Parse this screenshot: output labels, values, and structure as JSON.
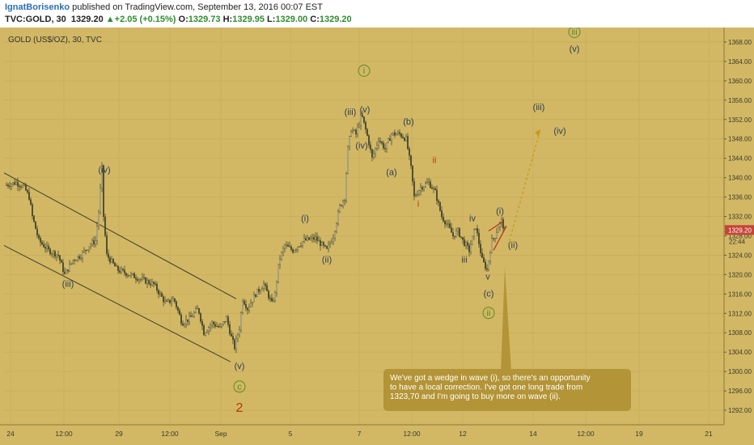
{
  "header": {
    "author": "IgnatBorisenko",
    "published": "published on TradingView.com, September 13, 2016 00:07 EST",
    "symbol": "TVC:GOLD, 30",
    "last": "1329.20",
    "change": "+2.05 (+0.15%)",
    "o_label": "O:",
    "o": "1329.73",
    "h_label": "H:",
    "h": "1329.95",
    "l_label": "L:",
    "l": "1329.00",
    "c_label": "C:",
    "c": "1329.20"
  },
  "colors": {
    "background": "#d2b865",
    "candle": "#4a4a2c",
    "wave_text": "#2c3e55",
    "wave_green": "#5a8a2a",
    "wave_red": "#b03a10",
    "price_tag": "#c5443a",
    "arrow": "#c89a18",
    "callout": "#b39436"
  },
  "chart_data": {
    "type": "candlestick",
    "title": "GOLD (US$/OZ), 30, TVC",
    "ylim": [
      1289,
      1371
    ],
    "y_ticks": [
      "1292.00",
      "1296.00",
      "1300.00",
      "1304.00",
      "1308.00",
      "1312.00",
      "1316.00",
      "1320.00",
      "1324.00",
      "1328.00",
      "1332.00",
      "1336.00",
      "1340.00",
      "1344.00",
      "1348.00",
      "1352.00",
      "1356.00",
      "1360.00",
      "1364.00",
      "1368.00"
    ],
    "x_ticks": [
      "24",
      "12:00",
      "29",
      "12:00",
      "Sep",
      "5",
      "7",
      "12:00",
      "12",
      "14",
      "12:00",
      "19",
      "21"
    ],
    "last_price": "1329.20",
    "countdown": "22:44",
    "path_x": [
      8,
      20,
      30,
      36,
      40,
      48,
      60,
      72,
      80,
      90,
      100,
      110,
      118,
      122,
      126,
      128,
      132,
      145,
      160,
      175,
      190,
      205,
      215,
      225,
      235,
      245,
      252,
      262,
      272,
      280,
      286,
      290,
      296,
      300,
      306,
      316,
      326,
      336,
      340,
      345,
      352,
      362,
      375,
      390,
      404,
      412,
      420,
      426,
      430,
      434,
      440,
      447,
      455,
      460,
      468,
      476,
      484,
      494,
      502,
      508,
      512,
      516,
      520,
      530,
      538,
      546,
      554,
      560,
      566,
      572,
      580,
      588,
      596,
      602,
      608,
      612,
      616,
      620,
      624
    ],
    "path_y": [
      1338.5,
      1339,
      1338,
      1336,
      1332,
      1327,
      1325,
      1324,
      1320,
      1323,
      1324,
      1326,
      1327,
      1333,
      1342,
      1332,
      1324,
      1321,
      1320,
      1319,
      1318,
      1314,
      1315,
      1310,
      1311,
      1313,
      1308,
      1310,
      1309,
      1311,
      1307,
      1305,
      1309,
      1315,
      1313,
      1316,
      1318,
      1314,
      1316,
      1323,
      1326,
      1325,
      1327,
      1327.5,
      1325,
      1328,
      1334,
      1336,
      1346,
      1350,
      1349,
      1353,
      1348,
      1344,
      1348,
      1346,
      1349,
      1349,
      1348,
      1342,
      1336,
      1337,
      1338,
      1339,
      1337,
      1332,
      1330,
      1328,
      1329,
      1327,
      1325,
      1330,
      1323,
      1321,
      1327,
      1328,
      1330,
      1331,
      1329
    ],
    "channel_lines": [
      {
        "from": [
          5,
          1341
        ],
        "to": [
          292,
          1315
        ]
      },
      {
        "from": [
          5,
          1326
        ],
        "to": [
          285,
          1302
        ]
      }
    ],
    "wedge_lines": [
      {
        "from": [
          604,
          1329
        ],
        "to": [
          622,
          1331
        ]
      },
      {
        "from": [
          610,
          1325
        ],
        "to": [
          626,
          1330
        ]
      }
    ],
    "projection": {
      "from": [
        628,
        1326
      ],
      "to": [
        668,
        1350
      ]
    },
    "waves": [
      {
        "text": "(iv)",
        "x": 129,
        "y": 1341,
        "color": "dark"
      },
      {
        "text": "(iii)",
        "x": 84,
        "y": 1317.5,
        "color": "dark"
      },
      {
        "text": "(v)",
        "x": 296,
        "y": 1300.5,
        "color": "dark"
      },
      {
        "text": "c",
        "x": 296,
        "y": 1296.3,
        "color": "green",
        "circled": true
      },
      {
        "text": "2",
        "x": 296,
        "y": 1291.7,
        "color": "red"
      },
      {
        "text": "(i)",
        "x": 377,
        "y": 1331,
        "color": "dark"
      },
      {
        "text": "(ii)",
        "x": 404,
        "y": 1322.5,
        "color": "dark"
      },
      {
        "text": "(iii)",
        "x": 433,
        "y": 1353,
        "color": "dark"
      },
      {
        "text": "(v)",
        "x": 451,
        "y": 1353.5,
        "color": "dark"
      },
      {
        "text": "(iv)",
        "x": 447,
        "y": 1346,
        "color": "dark"
      },
      {
        "text": "i",
        "x": 450,
        "y": 1361.5,
        "color": "green",
        "circled": true
      },
      {
        "text": "(b)",
        "x": 505,
        "y": 1351,
        "color": "dark"
      },
      {
        "text": "(a)",
        "x": 484,
        "y": 1340.5,
        "color": "dark"
      },
      {
        "text": "ii",
        "x": 537,
        "y": 1343,
        "color": "red"
      },
      {
        "text": "i",
        "x": 517,
        "y": 1334,
        "color": "red"
      },
      {
        "text": "iv",
        "x": 584,
        "y": 1331,
        "color": "dark"
      },
      {
        "text": "iii",
        "x": 574,
        "y": 1322.5,
        "color": "dark"
      },
      {
        "text": "(i)",
        "x": 618,
        "y": 1332.5,
        "color": "dark"
      },
      {
        "text": "(ii)",
        "x": 634,
        "y": 1325.5,
        "color": "dark"
      },
      {
        "text": "v",
        "x": 603,
        "y": 1319,
        "color": "dark"
      },
      {
        "text": "(c)",
        "x": 604,
        "y": 1315.5,
        "color": "dark"
      },
      {
        "text": "ii",
        "x": 604,
        "y": 1311.5,
        "color": "green",
        "circled": true
      },
      {
        "text": "(iii)",
        "x": 666,
        "y": 1354,
        "color": "dark"
      },
      {
        "text": "(iv)",
        "x": 692,
        "y": 1349,
        "color": "dark"
      },
      {
        "text": "iii",
        "x": 710,
        "y": 1369.5,
        "color": "green",
        "circled": true
      },
      {
        "text": "(v)",
        "x": 710,
        "y": 1366,
        "color": "dark"
      }
    ],
    "annotation": {
      "lines": [
        "We've got a wedge in wave (i), so there's an opportunity",
        "to have a local correction. I've got one long trade from",
        "1323,70 and I'm going to buy more on wave (ii)."
      ]
    }
  }
}
